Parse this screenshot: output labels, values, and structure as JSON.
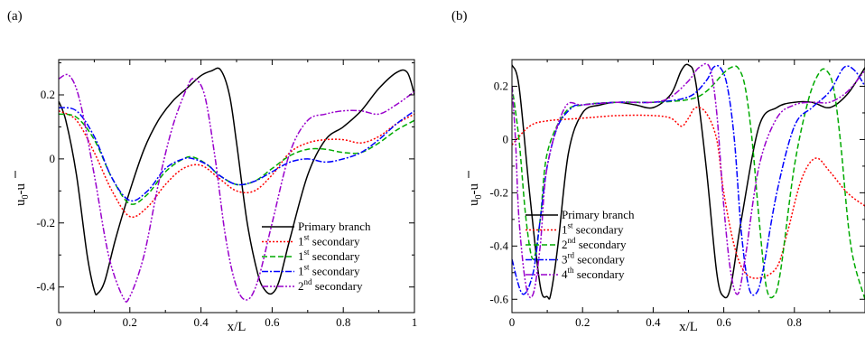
{
  "chart_data": [
    {
      "type": "line",
      "panel_label": "(a)",
      "xlabel": "x/L",
      "ylabel_base": "u",
      "ylabel_sub": "0",
      "ylabel_rest": "-u",
      "xlim": [
        0,
        1
      ],
      "ylim": [
        -0.48,
        0.31
      ],
      "xticks": [
        0,
        0.2,
        0.4,
        0.6,
        0.8,
        1
      ],
      "xtick_labels": [
        "0",
        "0.2",
        "0.4",
        "0.6",
        "0.8",
        "1"
      ],
      "yticks": [
        -0.4,
        -0.2,
        0,
        0.2
      ],
      "ytick_labels": [
        "-0.4",
        "-0.2",
        "0",
        "0.2"
      ],
      "legend_position": "bottom-right",
      "series": [
        {
          "name": "Primary branch",
          "name_sup": "",
          "name_rest": "",
          "color": "#000000",
          "dash": "",
          "x": [
            0,
            0.02,
            0.05,
            0.08,
            0.1,
            0.11,
            0.13,
            0.16,
            0.2,
            0.24,
            0.28,
            0.32,
            0.36,
            0.4,
            0.43,
            0.455,
            0.48,
            0.5,
            0.53,
            0.56,
            0.58,
            0.6,
            0.62,
            0.65,
            0.7,
            0.75,
            0.8,
            0.85,
            0.9,
            0.95,
            0.98,
            1.0
          ],
          "y": [
            0.18,
            0.12,
            -0.05,
            -0.3,
            -0.41,
            -0.42,
            -0.38,
            -0.25,
            -0.1,
            0.03,
            0.12,
            0.18,
            0.22,
            0.26,
            0.275,
            0.278,
            0.2,
            0.05,
            -0.2,
            -0.36,
            -0.41,
            -0.42,
            -0.38,
            -0.25,
            -0.05,
            0.06,
            0.1,
            0.15,
            0.22,
            0.27,
            0.27,
            0.2
          ]
        },
        {
          "name": "1",
          "name_sup": "st",
          "name_rest": " secondary",
          "color": "#ff0000",
          "dash": "2,2",
          "x": [
            0,
            0.05,
            0.1,
            0.15,
            0.2,
            0.25,
            0.3,
            0.35,
            0.4,
            0.45,
            0.5,
            0.55,
            0.6,
            0.65,
            0.7,
            0.75,
            0.8,
            0.85,
            0.9,
            0.95,
            1.0
          ],
          "y": [
            0.15,
            0.12,
            0.02,
            -0.1,
            -0.18,
            -0.15,
            -0.08,
            -0.03,
            -0.02,
            -0.06,
            -0.1,
            -0.1,
            -0.05,
            0.02,
            0.05,
            0.06,
            0.06,
            0.05,
            0.07,
            0.11,
            0.14
          ]
        },
        {
          "name": "1",
          "name_sup": "st",
          "name_rest": " secondary",
          "color": "#00aa00",
          "dash": "6,3",
          "x": [
            0,
            0.05,
            0.1,
            0.15,
            0.2,
            0.25,
            0.3,
            0.35,
            0.38,
            0.42,
            0.45,
            0.5,
            0.55,
            0.6,
            0.65,
            0.7,
            0.75,
            0.8,
            0.85,
            0.9,
            0.95,
            1.0
          ],
          "y": [
            0.14,
            0.13,
            0.06,
            -0.06,
            -0.14,
            -0.11,
            -0.04,
            0.0,
            0.005,
            -0.02,
            -0.05,
            -0.08,
            -0.07,
            -0.03,
            0.01,
            0.03,
            0.03,
            0.02,
            0.02,
            0.05,
            0.09,
            0.12
          ]
        },
        {
          "name": "1",
          "name_sup": "st",
          "name_rest": " secondary",
          "color": "#0000ff",
          "dash": "7,2,2,2",
          "x": [
            0,
            0.05,
            0.1,
            0.15,
            0.2,
            0.25,
            0.3,
            0.35,
            0.38,
            0.42,
            0.45,
            0.5,
            0.55,
            0.6,
            0.65,
            0.7,
            0.75,
            0.8,
            0.85,
            0.9,
            0.95,
            1.0
          ],
          "y": [
            0.16,
            0.15,
            0.07,
            -0.06,
            -0.13,
            -0.1,
            -0.03,
            0.0,
            0.0,
            -0.02,
            -0.05,
            -0.08,
            -0.07,
            -0.04,
            -0.01,
            0.0,
            -0.01,
            0.0,
            0.02,
            0.06,
            0.11,
            0.15
          ]
        },
        {
          "name": "2",
          "name_sup": "nd",
          "name_rest": " secondary",
          "color": "#9900cc",
          "dash": "7,2,2,2,2,2",
          "x": [
            0,
            0.03,
            0.06,
            0.1,
            0.14,
            0.18,
            0.2,
            0.24,
            0.28,
            0.32,
            0.36,
            0.38,
            0.41,
            0.44,
            0.47,
            0.5,
            0.53,
            0.56,
            0.6,
            0.65,
            0.7,
            0.75,
            0.8,
            0.85,
            0.9,
            0.95,
            1.0
          ],
          "y": [
            0.25,
            0.26,
            0.18,
            -0.05,
            -0.3,
            -0.43,
            -0.43,
            -0.3,
            -0.08,
            0.1,
            0.22,
            0.25,
            0.2,
            0.0,
            -0.25,
            -0.4,
            -0.44,
            -0.38,
            -0.2,
            0.02,
            0.12,
            0.14,
            0.15,
            0.15,
            0.14,
            0.17,
            0.21
          ]
        }
      ]
    },
    {
      "type": "line",
      "panel_label": "(b)",
      "xlabel": "x/L",
      "ylabel_base": "u",
      "ylabel_sub": "0",
      "ylabel_rest": "-u",
      "xlim": [
        0,
        1
      ],
      "ylim": [
        -0.65,
        0.3
      ],
      "xticks": [
        0,
        0.2,
        0.4,
        0.6,
        0.8
      ],
      "xtick_labels": [
        "0",
        "0.2",
        "0.4",
        "0.6",
        "0.8"
      ],
      "yticks": [
        -0.6,
        -0.4,
        -0.2,
        0,
        0.2
      ],
      "ytick_labels": [
        "-0.6",
        "-0.4",
        "-0.2",
        "0",
        "0.2"
      ],
      "legend_position": "bottom-left",
      "series": [
        {
          "name": "Primary branch",
          "name_sup": "",
          "name_rest": "",
          "color": "#000000",
          "dash": "",
          "x": [
            0,
            0.02,
            0.05,
            0.08,
            0.1,
            0.11,
            0.13,
            0.16,
            0.2,
            0.25,
            0.3,
            0.35,
            0.4,
            0.45,
            0.48,
            0.5,
            0.52,
            0.55,
            0.58,
            0.6,
            0.62,
            0.65,
            0.7,
            0.75,
            0.8,
            0.85,
            0.9,
            0.95,
            1.0
          ],
          "y": [
            0.28,
            0.2,
            -0.2,
            -0.55,
            -0.59,
            -0.58,
            -0.4,
            -0.05,
            0.1,
            0.13,
            0.14,
            0.13,
            0.12,
            0.17,
            0.26,
            0.28,
            0.22,
            -0.1,
            -0.5,
            -0.59,
            -0.55,
            -0.3,
            0.05,
            0.12,
            0.14,
            0.14,
            0.12,
            0.17,
            0.27
          ]
        },
        {
          "name": "1",
          "name_sup": "st",
          "name_rest": " secondary",
          "color": "#ff0000",
          "dash": "2,2",
          "x": [
            0,
            0.05,
            0.1,
            0.2,
            0.3,
            0.4,
            0.45,
            0.48,
            0.5,
            0.52,
            0.55,
            0.58,
            0.6,
            0.63,
            0.66,
            0.7,
            0.75,
            0.78,
            0.82,
            0.86,
            0.9,
            0.95,
            1.0
          ],
          "y": [
            -0.02,
            0.05,
            0.07,
            0.08,
            0.09,
            0.09,
            0.08,
            0.05,
            0.08,
            0.12,
            0.1,
            0.0,
            -0.2,
            -0.4,
            -0.5,
            -0.52,
            -0.48,
            -0.35,
            -0.15,
            -0.07,
            -0.12,
            -0.2,
            -0.25
          ]
        },
        {
          "name": "2",
          "name_sup": "nd",
          "name_rest": " secondary",
          "color": "#00aa00",
          "dash": "6,3",
          "x": [
            0,
            0.02,
            0.04,
            0.06,
            0.08,
            0.1,
            0.15,
            0.2,
            0.3,
            0.4,
            0.5,
            0.55,
            0.6,
            0.62,
            0.64,
            0.66,
            0.68,
            0.7,
            0.72,
            0.74,
            0.76,
            0.8,
            0.84,
            0.87,
            0.89,
            0.91,
            0.93,
            0.96,
            1.0
          ],
          "y": [
            0.2,
            0.0,
            -0.3,
            -0.45,
            -0.3,
            -0.05,
            0.1,
            0.13,
            0.14,
            0.14,
            0.15,
            0.18,
            0.25,
            0.27,
            0.27,
            0.2,
            0.0,
            -0.3,
            -0.55,
            -0.59,
            -0.5,
            -0.1,
            0.15,
            0.25,
            0.26,
            0.2,
            0.0,
            -0.4,
            -0.6
          ]
        },
        {
          "name": "3",
          "name_sup": "rd",
          "name_rest": " secondary",
          "color": "#0000ff",
          "dash": "7,2,2,2",
          "x": [
            0,
            0.03,
            0.06,
            0.08,
            0.1,
            0.13,
            0.17,
            0.2,
            0.3,
            0.4,
            0.5,
            0.55,
            0.57,
            0.59,
            0.61,
            0.63,
            0.65,
            0.67,
            0.69,
            0.71,
            0.75,
            0.8,
            0.85,
            0.9,
            0.94,
            0.97,
            1.0
          ],
          "y": [
            -0.45,
            -0.58,
            -0.5,
            -0.3,
            -0.1,
            0.05,
            0.12,
            0.13,
            0.14,
            0.14,
            0.16,
            0.22,
            0.27,
            0.27,
            0.2,
            0.0,
            -0.35,
            -0.55,
            -0.58,
            -0.5,
            -0.2,
            0.05,
            0.12,
            0.18,
            0.27,
            0.26,
            0.2
          ]
        },
        {
          "name": "4",
          "name_sup": "th",
          "name_rest": " secondary",
          "color": "#9900cc",
          "dash": "7,2,2,2,2,2",
          "x": [
            0,
            0.01,
            0.02,
            0.04,
            0.06,
            0.08,
            0.1,
            0.15,
            0.2,
            0.3,
            0.4,
            0.45,
            0.5,
            0.53,
            0.56,
            0.58,
            0.6,
            0.62,
            0.64,
            0.66,
            0.7,
            0.75,
            0.8,
            0.85,
            0.9,
            0.95,
            1.0
          ],
          "y": [
            0.2,
            0.0,
            -0.3,
            -0.55,
            -0.58,
            -0.4,
            -0.1,
            0.12,
            0.13,
            0.14,
            0.14,
            0.16,
            0.22,
            0.27,
            0.27,
            0.1,
            -0.25,
            -0.5,
            -0.58,
            -0.45,
            -0.1,
            0.08,
            0.13,
            0.14,
            0.14,
            0.18,
            0.26
          ]
        }
      ]
    }
  ]
}
